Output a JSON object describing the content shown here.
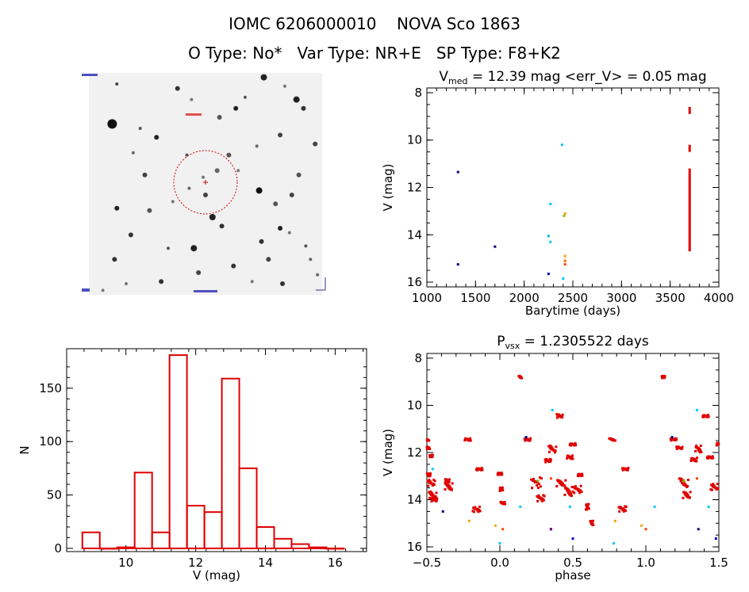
{
  "header": {
    "title": "IOMC 6206000010    NOVA Sco 1863",
    "subtitle": "O Type: No*   Var Type: NR+E   SP Type: F8+K2"
  },
  "image_panel": {
    "stars": [
      [
        0.1,
        0.23,
        6,
        "#111"
      ],
      [
        0.12,
        0.61,
        3,
        "#222"
      ],
      [
        0.11,
        0.84,
        3,
        "#333"
      ],
      [
        0.12,
        0.05,
        2,
        "#444"
      ],
      [
        0.18,
        0.73,
        3,
        "#333"
      ],
      [
        0.22,
        0.25,
        2,
        "#555"
      ],
      [
        0.24,
        0.46,
        3,
        "#444"
      ],
      [
        0.26,
        0.62,
        3,
        "#555"
      ],
      [
        0.29,
        0.29,
        3,
        "#222"
      ],
      [
        0.31,
        0.94,
        3,
        "#333"
      ],
      [
        0.34,
        0.79,
        2,
        "#555"
      ],
      [
        0.38,
        0.07,
        3,
        "#333"
      ],
      [
        0.42,
        0.37,
        2,
        "#555"
      ],
      [
        0.43,
        0.52,
        2,
        "#666"
      ],
      [
        0.45,
        0.79,
        4,
        "#222"
      ],
      [
        0.47,
        0.9,
        3,
        "#444"
      ],
      [
        0.49,
        0.47,
        2,
        "#777"
      ],
      [
        0.5,
        0.55,
        3,
        "#444"
      ],
      [
        0.53,
        0.65,
        4,
        "#222"
      ],
      [
        0.55,
        0.44,
        3,
        "#666"
      ],
      [
        0.56,
        0.2,
        3,
        "#555"
      ],
      [
        0.57,
        0.69,
        3,
        "#333"
      ],
      [
        0.6,
        0.37,
        3,
        "#555"
      ],
      [
        0.62,
        0.87,
        3,
        "#333"
      ],
      [
        0.63,
        0.16,
        3,
        "#222"
      ],
      [
        0.67,
        0.11,
        2,
        "#555"
      ],
      [
        0.72,
        0.33,
        2,
        "#666"
      ],
      [
        0.73,
        0.53,
        4,
        "#111"
      ],
      [
        0.74,
        0.76,
        3,
        "#333"
      ],
      [
        0.75,
        0.02,
        4,
        "#222"
      ],
      [
        0.77,
        0.84,
        3,
        "#444"
      ],
      [
        0.8,
        0.59,
        3,
        "#555"
      ],
      [
        0.82,
        0.28,
        3,
        "#444"
      ],
      [
        0.82,
        0.7,
        3,
        "#222"
      ],
      [
        0.83,
        0.95,
        3,
        "#333"
      ],
      [
        0.86,
        0.72,
        2,
        "#777"
      ],
      [
        0.87,
        0.55,
        3,
        "#444"
      ],
      [
        0.89,
        0.12,
        4,
        "#222"
      ],
      [
        0.9,
        0.46,
        3,
        "#555"
      ],
      [
        0.92,
        0.16,
        3,
        "#333"
      ],
      [
        0.93,
        0.78,
        2,
        "#555"
      ],
      [
        0.95,
        0.84,
        2,
        "#666"
      ],
      [
        0.97,
        0.32,
        3,
        "#444"
      ],
      [
        0.98,
        0.91,
        2,
        "#666"
      ],
      [
        0.06,
        0.98,
        2,
        "#777"
      ],
      [
        0.19,
        0.36,
        2,
        "#666"
      ],
      [
        0.36,
        0.58,
        2,
        "#777"
      ],
      [
        0.44,
        0.12,
        2,
        "#777"
      ],
      [
        0.64,
        0.44,
        2,
        "#777"
      ],
      [
        0.7,
        0.94,
        2,
        "#777"
      ],
      [
        0.84,
        0.06,
        2,
        "#777"
      ],
      [
        0.16,
        0.95,
        2,
        "#777"
      ]
    ]
  },
  "chart_data": [
    {
      "type": "scatter",
      "title": "V_med = 12.39 mag <err_V> = 0.05 mag",
      "title_parts": {
        "base": "V",
        "sub": "med",
        "rest": " = 12.39 mag <err_V> = 0.05 mag"
      },
      "xlabel": "Barytime (days)",
      "ylabel": "V (mag)",
      "xlim": [
        1000,
        4000
      ],
      "ylim": [
        16.2,
        7.8
      ],
      "y_inverted": true,
      "xticks": [
        1000,
        1500,
        2000,
        2500,
        3000,
        3500,
        4000
      ],
      "yticks": [
        8,
        10,
        12,
        14,
        16
      ],
      "points": [
        {
          "x": 1320,
          "y": 11.35,
          "color": "#000080"
        },
        {
          "x": 1320,
          "y": 15.25,
          "color": "#000080"
        },
        {
          "x": 1700,
          "y": 14.5,
          "color": "#000080"
        },
        {
          "x": 2250,
          "y": 15.65,
          "color": "#0000c0"
        },
        {
          "x": 2250,
          "y": 14.05,
          "color": "#00b0e0"
        },
        {
          "x": 2270,
          "y": 12.7,
          "color": "#00c8ff"
        },
        {
          "x": 2270,
          "y": 14.3,
          "color": "#00c8ff"
        },
        {
          "x": 2390,
          "y": 10.2,
          "color": "#00c8ff"
        },
        {
          "x": 2400,
          "y": 15.85,
          "color": "#00c8ff"
        },
        {
          "x": 2410,
          "y": 13.2,
          "color": "#80c000"
        },
        {
          "x": 2420,
          "y": 13.1,
          "color": "#ffa000"
        },
        {
          "x": 2420,
          "y": 15.1,
          "color": "#ff6000"
        },
        {
          "x": 2420,
          "y": 15.25,
          "color": "#ff4000"
        },
        {
          "x": 2420,
          "y": 14.9,
          "color": "#ffa000"
        }
      ],
      "red_segments": [
        {
          "x": 3700,
          "y_from": 8.6,
          "y_to": 8.9
        },
        {
          "x": 3700,
          "y_from": 10.2,
          "y_to": 10.5
        },
        {
          "x": 3700,
          "y_from": 11.2,
          "y_to": 14.7
        }
      ]
    },
    {
      "type": "bar",
      "title": "",
      "xlabel": "V (mag)",
      "ylabel": "N",
      "xlim": [
        8.3,
        16.9
      ],
      "ylim": [
        -3,
        187
      ],
      "xticks": [
        10,
        12,
        14,
        16
      ],
      "yticks": [
        0,
        50,
        100,
        150
      ],
      "bin_edges": [
        8.75,
        9.25,
        9.75,
        10.25,
        10.75,
        11.25,
        11.75,
        12.25,
        12.75,
        13.25,
        13.75,
        14.25,
        14.75,
        15.25,
        15.75,
        16.25
      ],
      "values": [
        15,
        0,
        1,
        71,
        15,
        181,
        40,
        34,
        159,
        75,
        20,
        9,
        4,
        1,
        0
      ],
      "color": "#e00000"
    },
    {
      "type": "scatter",
      "title": "P_vsx = 1.2305522 days",
      "title_parts": {
        "base": "P",
        "sub": "vsx",
        "rest": " = 1.2305522 days"
      },
      "xlabel": "phase",
      "ylabel": "V (mag)",
      "xlim": [
        -0.5,
        1.5
      ],
      "ylim": [
        16.2,
        7.8
      ],
      "y_inverted": true,
      "xticks": [
        -0.5,
        0.0,
        0.5,
        1.0,
        1.5
      ],
      "xtick_labels": [
        "−0.5",
        "0.0",
        "0.5",
        "1.0",
        "1.5"
      ],
      "yticks": [
        8,
        10,
        12,
        14,
        16
      ],
      "red_clusters": [
        [
          -0.5,
          11.45,
          0.03,
          0.1
        ],
        [
          -0.49,
          11.8,
          0.02,
          0.1
        ],
        [
          -0.47,
          12.15,
          0.02,
          0.1
        ],
        [
          -0.49,
          12.95,
          0.03,
          0.15
        ],
        [
          -0.47,
          13.3,
          0.05,
          0.3
        ],
        [
          -0.46,
          13.8,
          0.05,
          0.3
        ],
        [
          -0.45,
          14.0,
          0.04,
          0.15
        ],
        [
          -0.36,
          13.2,
          0.03,
          0.15
        ],
        [
          -0.35,
          13.45,
          0.05,
          0.3
        ],
        [
          -0.22,
          11.45,
          0.04,
          0.1
        ],
        [
          -0.14,
          12.7,
          0.04,
          0.1
        ],
        [
          -0.16,
          14.4,
          0.05,
          0.25
        ],
        [
          0.0,
          12.9,
          0.03,
          0.1
        ],
        [
          0.01,
          13.55,
          0.02,
          0.15
        ],
        [
          0.02,
          14.15,
          0.03,
          0.1
        ],
        [
          0.14,
          8.8,
          0.02,
          0.1
        ],
        [
          0.19,
          11.45,
          0.04,
          0.1
        ],
        [
          0.25,
          13.3,
          0.07,
          0.5
        ],
        [
          0.28,
          13.95,
          0.05,
          0.3
        ],
        [
          0.33,
          12.35,
          0.04,
          0.15
        ],
        [
          0.36,
          11.85,
          0.05,
          0.3
        ],
        [
          0.41,
          10.45,
          0.04,
          0.15
        ],
        [
          0.42,
          13.3,
          0.06,
          0.3
        ],
        [
          0.47,
          13.65,
          0.05,
          0.4
        ],
        [
          0.48,
          12.2,
          0.04,
          0.15
        ],
        [
          0.5,
          11.65,
          0.04,
          0.1
        ],
        [
          0.53,
          13.55,
          0.06,
          0.35
        ],
        [
          0.55,
          12.95,
          0.03,
          0.1
        ],
        [
          0.6,
          14.3,
          0.02,
          0.25
        ],
        [
          0.63,
          15.0,
          0.02,
          0.2
        ],
        [
          0.77,
          11.45,
          0.04,
          0.1
        ],
        [
          0.86,
          12.7,
          0.04,
          0.1
        ],
        [
          0.84,
          14.4,
          0.05,
          0.25
        ],
        [
          1.12,
          8.8,
          0.02,
          0.1
        ],
        [
          1.19,
          11.45,
          0.04,
          0.1
        ],
        [
          1.23,
          11.8,
          0.04,
          0.1
        ],
        [
          1.26,
          13.3,
          0.06,
          0.4
        ],
        [
          1.28,
          13.8,
          0.05,
          0.3
        ],
        [
          1.33,
          12.3,
          0.04,
          0.15
        ],
        [
          1.36,
          11.85,
          0.04,
          0.3
        ],
        [
          1.41,
          10.45,
          0.04,
          0.1
        ],
        [
          1.44,
          12.2,
          0.04,
          0.1
        ],
        [
          1.47,
          13.45,
          0.05,
          0.3
        ],
        [
          1.5,
          11.65,
          0.03,
          0.1
        ]
      ],
      "points": [
        {
          "x": -0.39,
          "y": 14.5,
          "color": "#000080"
        },
        {
          "x": 0.18,
          "y": 11.35,
          "color": "#000080"
        },
        {
          "x": 0.35,
          "y": 15.25,
          "color": "#000080"
        },
        {
          "x": 1.18,
          "y": 11.35,
          "color": "#000080"
        },
        {
          "x": 1.36,
          "y": 15.25,
          "color": "#000080"
        },
        {
          "x": 0.5,
          "y": 15.65,
          "color": "#0000c0"
        },
        {
          "x": 1.48,
          "y": 15.65,
          "color": "#0000c0"
        },
        {
          "x": -0.46,
          "y": 12.7,
          "color": "#00c8ff"
        },
        {
          "x": 0.36,
          "y": 10.2,
          "color": "#00c8ff"
        },
        {
          "x": 1.35,
          "y": 10.2,
          "color": "#00c8ff"
        },
        {
          "x": 0.0,
          "y": 15.85,
          "color": "#00c8ff"
        },
        {
          "x": 0.78,
          "y": 15.85,
          "color": "#00c8ff"
        },
        {
          "x": 0.14,
          "y": 14.3,
          "color": "#00c8ff"
        },
        {
          "x": 0.48,
          "y": 14.3,
          "color": "#00c8ff"
        },
        {
          "x": 1.06,
          "y": 14.3,
          "color": "#00c8ff"
        },
        {
          "x": 1.43,
          "y": 14.3,
          "color": "#00c8ff"
        },
        {
          "x": 0.26,
          "y": 13.2,
          "color": "#80c000"
        },
        {
          "x": 1.26,
          "y": 13.2,
          "color": "#80c000"
        },
        {
          "x": -0.21,
          "y": 14.9,
          "color": "#ffa000"
        },
        {
          "x": -0.03,
          "y": 15.1,
          "color": "#ffa000"
        },
        {
          "x": 0.79,
          "y": 14.9,
          "color": "#ffa000"
        },
        {
          "x": 0.97,
          "y": 15.1,
          "color": "#ffa000"
        },
        {
          "x": 0.02,
          "y": 15.25,
          "color": "#ff4000"
        },
        {
          "x": 1.0,
          "y": 15.25,
          "color": "#ff4000"
        },
        {
          "x": 0.35,
          "y": 13.1,
          "color": "#ff4000"
        },
        {
          "x": 1.35,
          "y": 13.1,
          "color": "#ff4000"
        },
        {
          "x": 0.35,
          "y": 15.25,
          "color": "#800080"
        }
      ]
    }
  ]
}
